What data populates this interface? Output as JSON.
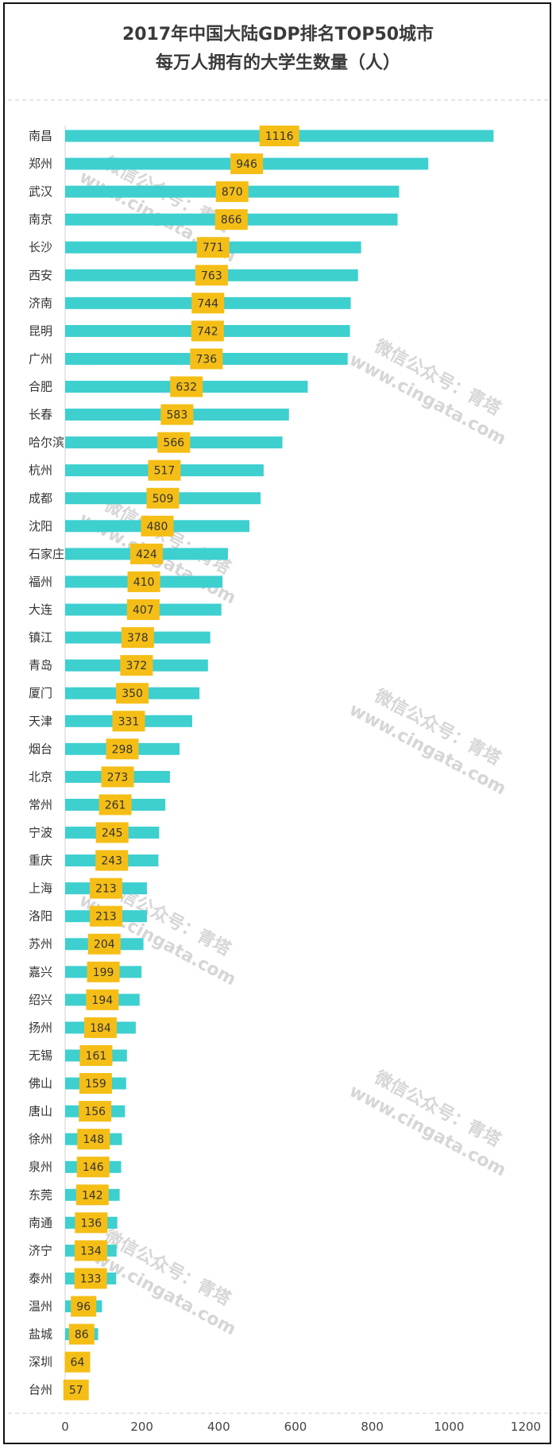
{
  "chart_data": {
    "type": "bar",
    "orientation": "horizontal",
    "title": "2017年中国大陆GDP排名TOP50城市",
    "subtitle": "每万人拥有的大学生数量（人）",
    "categories": [
      "南昌",
      "郑州",
      "武汉",
      "南京",
      "长沙",
      "西安",
      "济南",
      "昆明",
      "广州",
      "合肥",
      "长春",
      "哈尔滨",
      "杭州",
      "成都",
      "沈阳",
      "石家庄",
      "福州",
      "大连",
      "镇江",
      "青岛",
      "厦门",
      "天津",
      "烟台",
      "北京",
      "常州",
      "宁波",
      "重庆",
      "上海",
      "洛阳",
      "苏州",
      "嘉兴",
      "绍兴",
      "扬州",
      "无锡",
      "佛山",
      "唐山",
      "徐州",
      "泉州",
      "东莞",
      "南通",
      "济宁",
      "泰州",
      "温州",
      "盐城",
      "深圳",
      "台州"
    ],
    "values": [
      1116,
      946,
      870,
      866,
      771,
      763,
      744,
      742,
      736,
      632,
      583,
      566,
      517,
      509,
      480,
      424,
      410,
      407,
      378,
      372,
      350,
      331,
      298,
      273,
      261,
      245,
      243,
      213,
      213,
      204,
      199,
      194,
      184,
      161,
      159,
      156,
      148,
      146,
      142,
      136,
      134,
      133,
      96,
      86,
      64,
      57
    ],
    "xlim": [
      0,
      1200
    ],
    "xticks": [
      "0",
      "200",
      "400",
      "600",
      "800",
      "1000",
      "1200"
    ],
    "bar_color": "#3ecfcf",
    "label_box_color": "#f5be16",
    "grid": false
  },
  "watermark": {
    "line1": "微信公众号：青塔",
    "line2": "www.cingata.com"
  }
}
